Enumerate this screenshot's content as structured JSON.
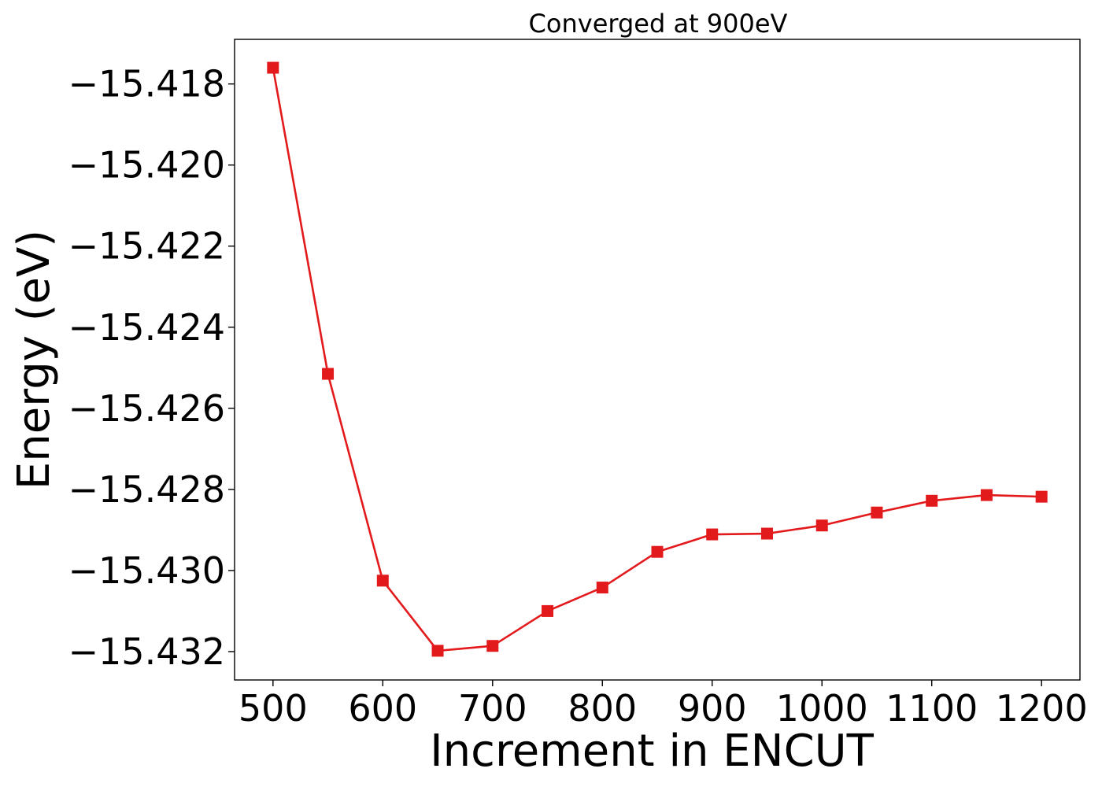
{
  "chart_data": {
    "type": "line",
    "title": "Converged at 900eV",
    "xlabel": "Increment in ENCUT",
    "ylabel": "Energy (eV)",
    "xlim": [
      465,
      1235
    ],
    "ylim": [
      -15.4327,
      -15.4169
    ],
    "x_ticks": [
      500,
      600,
      700,
      800,
      900,
      1000,
      1100,
      1200
    ],
    "y_ticks": [
      -15.418,
      -15.42,
      -15.422,
      -15.424,
      -15.426,
      -15.428,
      -15.43,
      -15.432
    ],
    "x_tick_labels": [
      "500",
      "600",
      "700",
      "800",
      "900",
      "1000",
      "1100",
      "1200"
    ],
    "y_tick_labels": [
      "−15.418",
      "−15.420",
      "−15.422",
      "−15.424",
      "−15.426",
      "−15.428",
      "−15.430",
      "−15.432"
    ],
    "grid": false,
    "series": [
      {
        "color": "#e31a1c",
        "marker": "square",
        "x": [
          500,
          550,
          600,
          650,
          700,
          750,
          800,
          850,
          900,
          950,
          1000,
          1050,
          1100,
          1150,
          1200
        ],
        "y": [
          -15.4176,
          -15.42515,
          -15.43025,
          -15.43198,
          -15.43186,
          -15.431,
          -15.43042,
          -15.42954,
          -15.42911,
          -15.42909,
          -15.42889,
          -15.42857,
          -15.42828,
          -15.42814,
          -15.42818
        ]
      }
    ]
  }
}
